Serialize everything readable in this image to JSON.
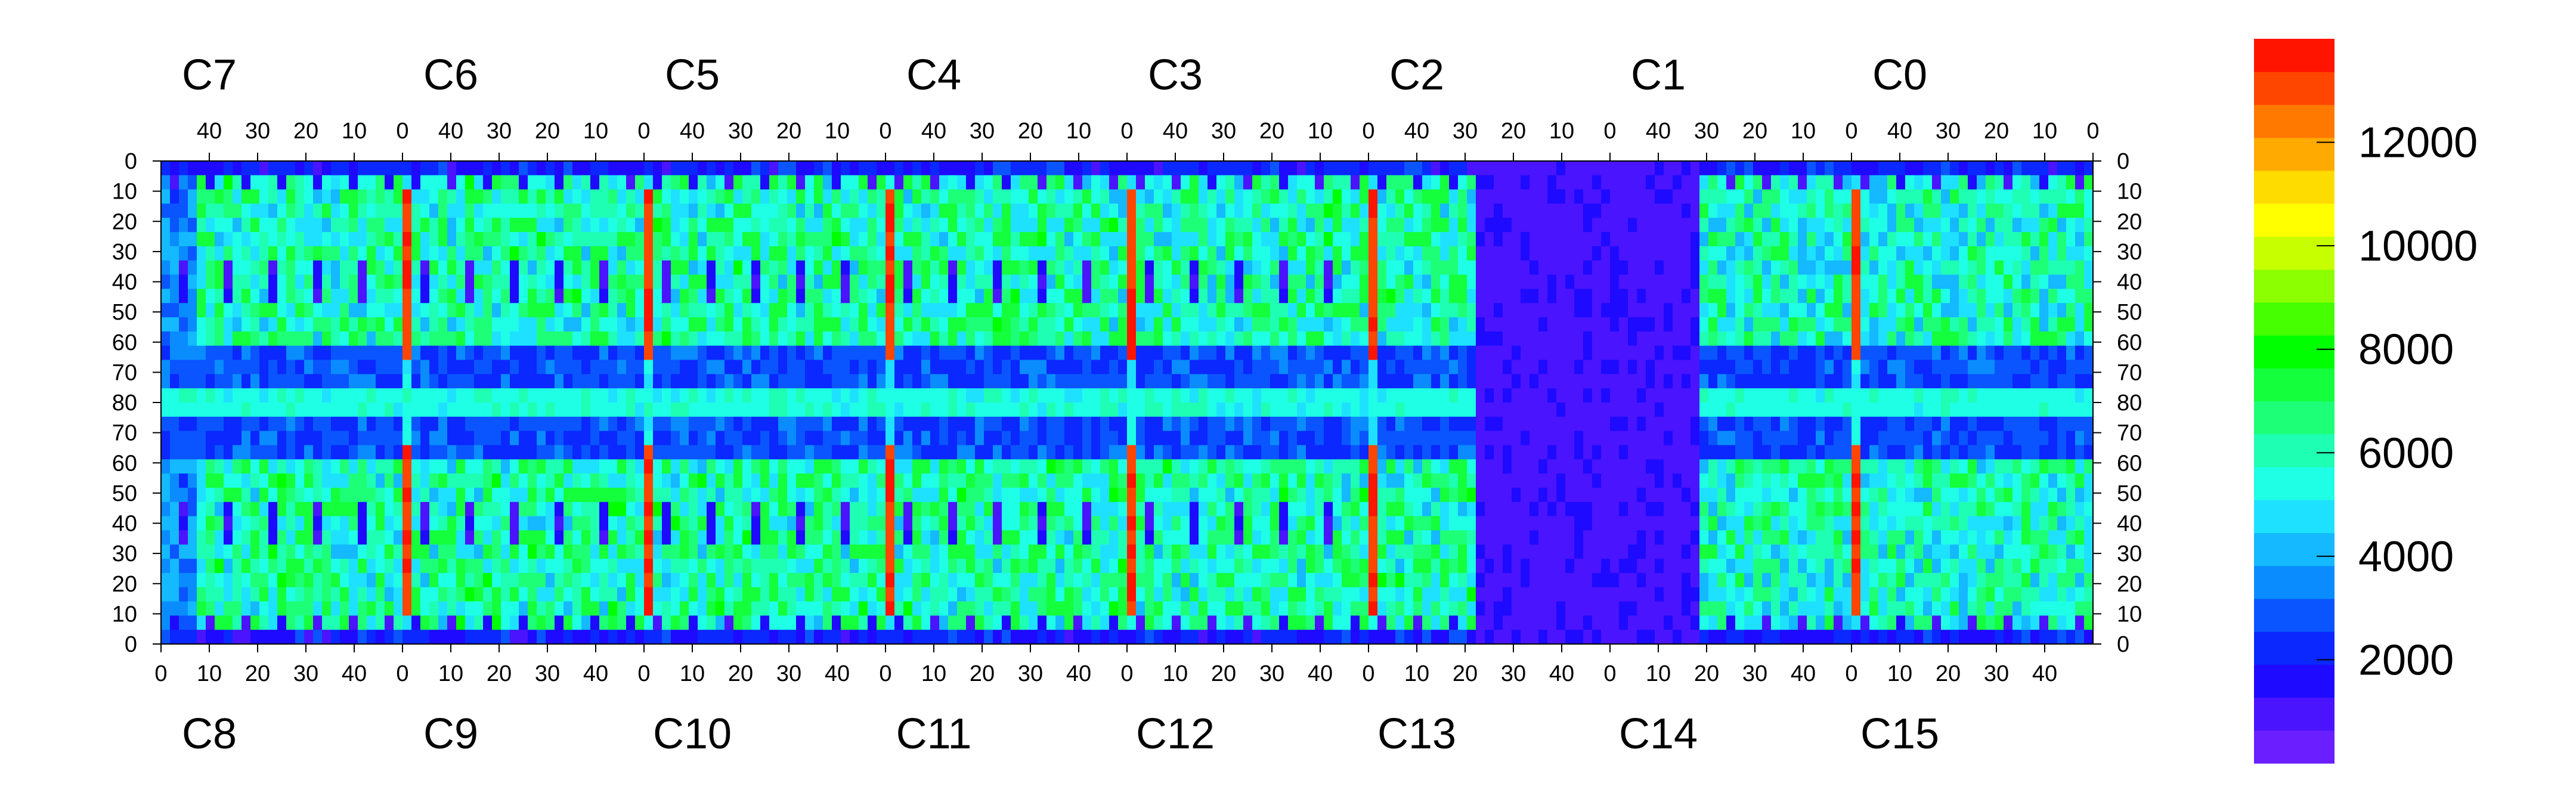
{
  "chart_data": {
    "type": "heatmap",
    "title": "",
    "xlabel": "",
    "ylabel": "",
    "grid": false,
    "legend": "colorbar-right",
    "chips_top": [
      "C7",
      "C6",
      "C5",
      "C4",
      "C3",
      "C2",
      "C1",
      "C0"
    ],
    "chips_bottom": [
      "C8",
      "C9",
      "C10",
      "C11",
      "C12",
      "C13",
      "C14",
      "C15"
    ],
    "top_x_ticks": [
      "40",
      "30",
      "20",
      "10",
      "0"
    ],
    "bottom_x_ticks": [
      "0",
      "10",
      "20",
      "30",
      "40"
    ],
    "y_ticks": [
      "0",
      "10",
      "20",
      "30",
      "40",
      "50",
      "60",
      "70",
      "80",
      "70",
      "60",
      "50",
      "40",
      "30",
      "20",
      "10",
      "0"
    ],
    "colorbar": {
      "range": [
        0,
        14000
      ],
      "ticks": [
        "2000",
        "4000",
        "6000",
        "8000",
        "10000",
        "12000"
      ],
      "tick_values": [
        2000,
        4000,
        6000,
        8000,
        10000,
        12000
      ],
      "colors": [
        "#6b1eff",
        "#4a14ff",
        "#1e0aff",
        "#0a28ff",
        "#0a55ff",
        "#0a8cff",
        "#14b9ff",
        "#1ee1ff",
        "#1effe6",
        "#1effb4",
        "#1eff78",
        "#14ff3c",
        "#00ff00",
        "#46ff00",
        "#8cff00",
        "#c8ff00",
        "#ffff00",
        "#ffdc00",
        "#ffaa00",
        "#ff7800",
        "#ff4600",
        "#ff1400"
      ]
    },
    "features": {
      "chip_column_edge_level": 4500,
      "chip_column_hot_level": 12800,
      "hot_row_ranges": [
        [
          10,
          60
        ],
        [
          60,
          10
        ]
      ],
      "middle_row_level": 5000,
      "main_body_level": 6000,
      "center_band_level": 2000,
      "dead_region_chips": [
        "C2",
        "C13"
      ],
      "dead_region_level": 800
    }
  }
}
